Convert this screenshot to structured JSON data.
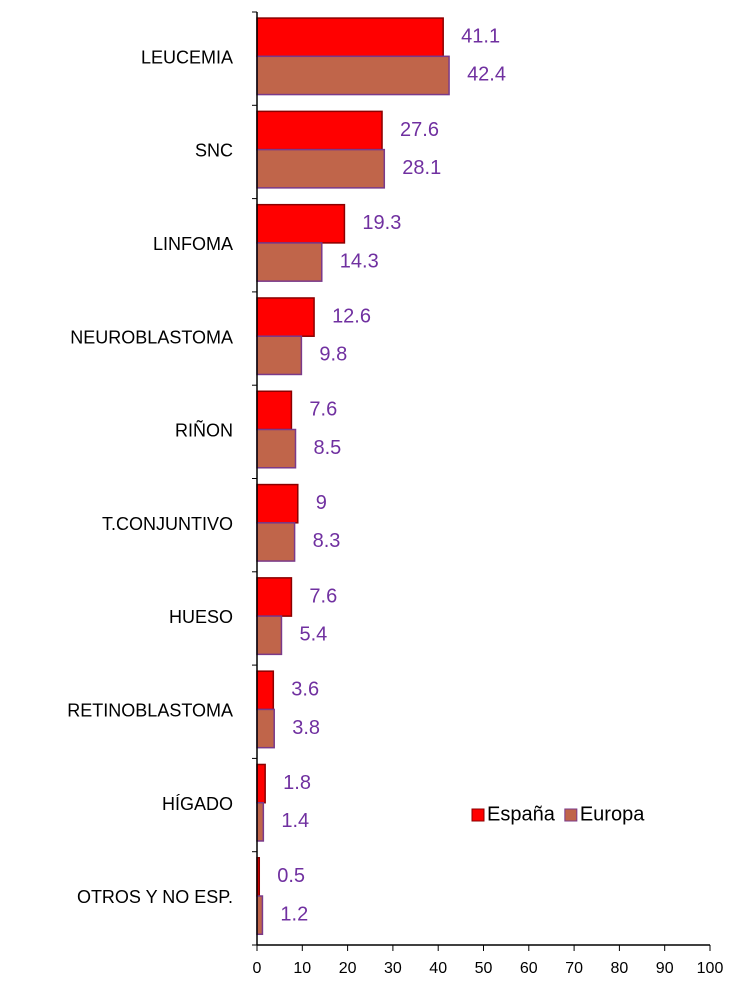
{
  "chart_data": {
    "type": "bar",
    "orientation": "horizontal",
    "categories": [
      "LEUCEMIA",
      "SNC",
      "LINFOMA",
      "NEUROBLASTOMA",
      "RIÑON",
      "T.CONJUNTIVO",
      "HUESO",
      "RETINOBLASTOMA",
      "HÍGADO",
      "OTROS Y NO ESP."
    ],
    "series": [
      {
        "name": "España",
        "color": "#ff0000",
        "values": [
          41.1,
          27.6,
          19.3,
          12.6,
          7.6,
          9,
          7.6,
          3.6,
          1.8,
          0.5
        ]
      },
      {
        "name": "Europa",
        "color": "#c0654a",
        "values": [
          42.4,
          28.1,
          14.3,
          9.8,
          8.5,
          8.3,
          5.4,
          3.8,
          1.4,
          1.2
        ]
      }
    ],
    "xlim": [
      0,
      100
    ],
    "xticks": [
      0,
      10,
      20,
      30,
      40,
      50,
      60,
      70,
      80,
      90,
      100
    ],
    "legend": "lower right",
    "label_color": "#7030a0"
  }
}
